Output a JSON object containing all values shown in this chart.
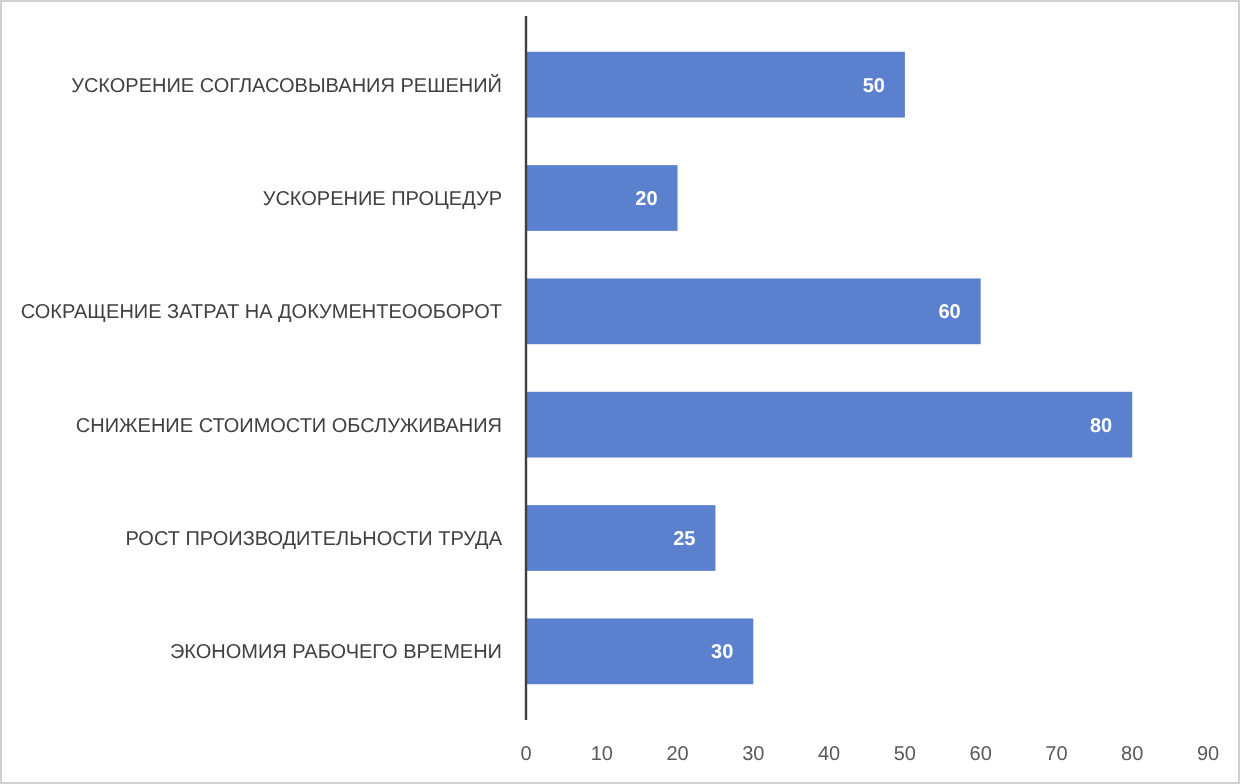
{
  "chart_data": {
    "type": "bar",
    "orientation": "horizontal",
    "categories": [
      "УСКОРЕНИЕ СОГЛАСОВЫВАНИЯ РЕШЕНИЙ",
      "УСКОРЕНИЕ ПРОЦЕДУР",
      "СОКРАЩЕНИЕ ЗАТРАТ НА ДОКУМЕНТЕООБОРОТ",
      "СНИЖЕНИЕ СТОИМОСТИ ОБСЛУЖИВАНИЯ",
      "РОСТ ПРОИЗВОДИТЕЛЬНОСТИ ТРУДА",
      "ЭКОНОМИЯ РАБОЧЕГО ВРЕМЕНИ"
    ],
    "values": [
      50,
      20,
      60,
      80,
      25,
      30
    ],
    "color": "#5b80cd",
    "xlim": [
      0,
      90
    ],
    "xticks": [
      0,
      10,
      20,
      30,
      40,
      50,
      60,
      70,
      80,
      90
    ],
    "data_labels": true
  }
}
